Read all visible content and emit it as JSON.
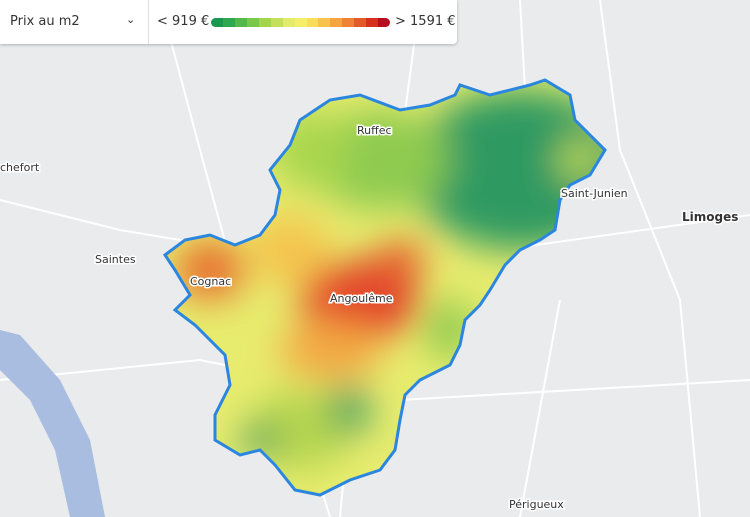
{
  "controls": {
    "measure_select": "Prix au m2",
    "legend": {
      "min_label": "< 919 €",
      "max_label": "> 1591 €",
      "colors": [
        "#1a9850",
        "#2fa84f",
        "#52b94a",
        "#7ac84b",
        "#a2d44d",
        "#c4e05a",
        "#e2ec6a",
        "#f4ee6b",
        "#f9dd5b",
        "#f8c24d",
        "#f5a440",
        "#ef8234",
        "#e45b2a",
        "#d7301f",
        "#b50f1f"
      ]
    }
  },
  "places": {
    "rochefort": "chefort",
    "saintes": "Saintes",
    "cognac": "Cognac",
    "angouleme": "Angoulême",
    "ruffec": "Ruffec",
    "saint_junien": "Saint-Junien",
    "limoges": "Limoges",
    "perigueux": "Périgueux"
  }
}
